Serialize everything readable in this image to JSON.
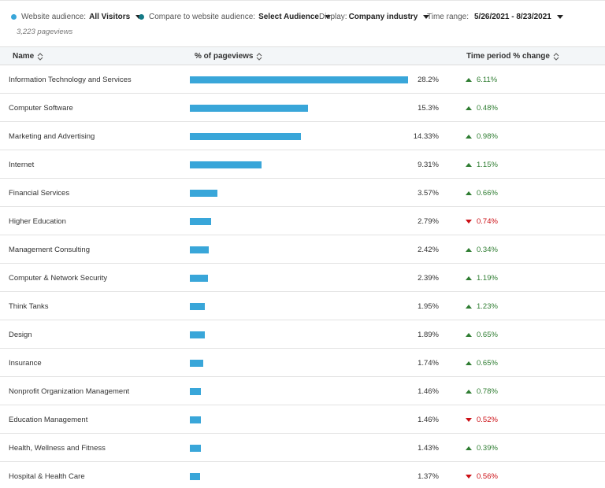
{
  "filters": {
    "website_audience": {
      "label": "Website audience:",
      "value": "All Visitors",
      "dot_color": "#39a6d9"
    },
    "compare": {
      "label": "Compare to website audience:",
      "value": "Select Audience",
      "dot_color": "#157a86"
    },
    "display": {
      "label": "Display:",
      "value": "Company industry"
    },
    "time_range": {
      "label": "Time range:",
      "value": "5/26/2021 - 8/23/2021"
    },
    "pageviews": "3,223 pageviews"
  },
  "table": {
    "headers": {
      "name": "Name",
      "pct": "% of pageviews",
      "change": "Time period % change"
    },
    "bar_color": "#39a6d9",
    "max_pct": 28.2,
    "rows": [
      {
        "name": "Information Technology and Services",
        "pct_value": 28.2,
        "pct": "28.2%",
        "change": "6.11%",
        "dir": "up"
      },
      {
        "name": "Computer Software",
        "pct_value": 15.3,
        "pct": "15.3%",
        "change": "0.48%",
        "dir": "up"
      },
      {
        "name": "Marketing and Advertising",
        "pct_value": 14.33,
        "pct": "14.33%",
        "change": "0.98%",
        "dir": "up"
      },
      {
        "name": "Internet",
        "pct_value": 9.31,
        "pct": "9.31%",
        "change": "1.15%",
        "dir": "up"
      },
      {
        "name": "Financial Services",
        "pct_value": 3.57,
        "pct": "3.57%",
        "change": "0.66%",
        "dir": "up"
      },
      {
        "name": "Higher Education",
        "pct_value": 2.79,
        "pct": "2.79%",
        "change": "0.74%",
        "dir": "down"
      },
      {
        "name": "Management Consulting",
        "pct_value": 2.42,
        "pct": "2.42%",
        "change": "0.34%",
        "dir": "up"
      },
      {
        "name": "Computer & Network Security",
        "pct_value": 2.39,
        "pct": "2.39%",
        "change": "1.19%",
        "dir": "up"
      },
      {
        "name": "Think Tanks",
        "pct_value": 1.95,
        "pct": "1.95%",
        "change": "1.23%",
        "dir": "up"
      },
      {
        "name": "Design",
        "pct_value": 1.89,
        "pct": "1.89%",
        "change": "0.65%",
        "dir": "up"
      },
      {
        "name": "Insurance",
        "pct_value": 1.74,
        "pct": "1.74%",
        "change": "0.65%",
        "dir": "up"
      },
      {
        "name": "Nonprofit Organization Management",
        "pct_value": 1.46,
        "pct": "1.46%",
        "change": "0.78%",
        "dir": "up"
      },
      {
        "name": "Education Management",
        "pct_value": 1.46,
        "pct": "1.46%",
        "change": "0.52%",
        "dir": "down"
      },
      {
        "name": "Health, Wellness and Fitness",
        "pct_value": 1.43,
        "pct": "1.43%",
        "change": "0.39%",
        "dir": "up"
      },
      {
        "name": "Hospital & Health Care",
        "pct_value": 1.37,
        "pct": "1.37%",
        "change": "0.56%",
        "dir": "down"
      }
    ]
  }
}
